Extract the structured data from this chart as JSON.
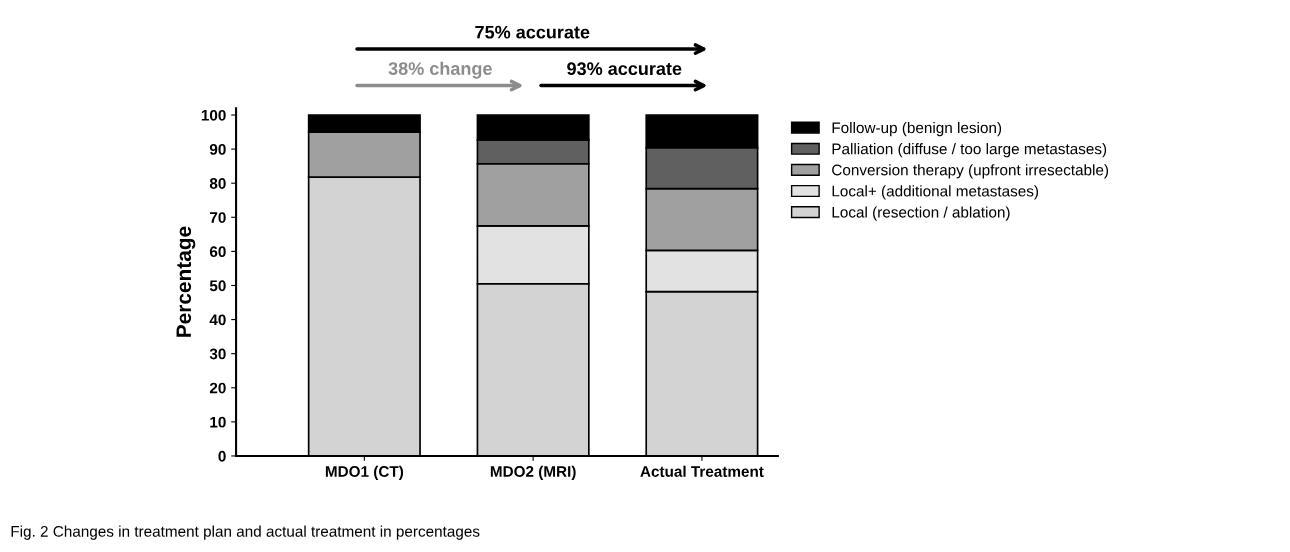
{
  "chart_data": {
    "type": "bar",
    "stacked": true,
    "ylabel": "Percentage",
    "categories": [
      "MDO1 (CT)",
      "MDO2 (MRI)",
      "Actual Treatment"
    ],
    "series": [
      {
        "name": "Local (resection / ablation)",
        "color": "#d3d3d3",
        "values": [
          81.8,
          50.5,
          48.2
        ]
      },
      {
        "name": "Local+ (additional metastases)",
        "color": "#e2e2e2",
        "values": [
          0,
          17.0,
          12.1
        ]
      },
      {
        "name": "Conversion therapy (upfront irresectable)",
        "color": "#a0a0a0",
        "values": [
          13.2,
          18.2,
          18.1
        ]
      },
      {
        "name": "Palliation (diffuse / too large metastases)",
        "color": "#606060",
        "values": [
          0,
          7.0,
          12.0
        ]
      },
      {
        "name": "Follow-up (benign lesion)",
        "color": "#000000",
        "values": [
          5.0,
          7.3,
          9.6
        ]
      }
    ],
    "ylim": [
      0,
      102
    ],
    "yticks": [
      0,
      10,
      20,
      30,
      40,
      50,
      60,
      70,
      80,
      90,
      100
    ],
    "grid": false,
    "legend": "right",
    "annotations": [
      "75% accurate",
      "38% change",
      "93% accurate",
      "Fig. 2 Changes in treatment plan and actual treatment in percentages"
    ]
  }
}
